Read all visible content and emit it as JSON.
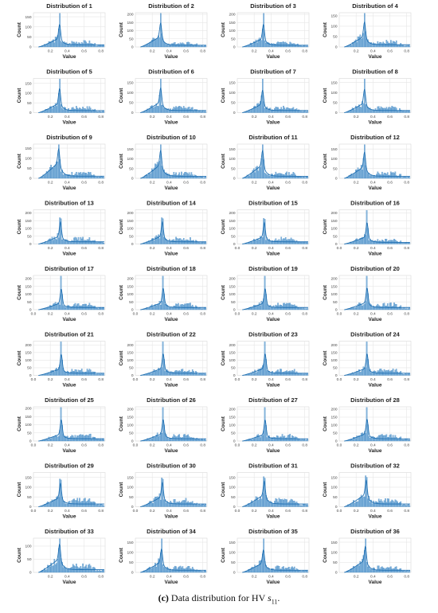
{
  "chart_data": {
    "type": "histogram-kde-grid",
    "panel_title_prefix": "Distribution of",
    "panel_titles": [
      "1",
      "2",
      "3",
      "4",
      "5",
      "6",
      "7",
      "8",
      "9",
      "10",
      "11",
      "12",
      "13",
      "14",
      "15",
      "16",
      "17",
      "18",
      "19",
      "20",
      "21",
      "22",
      "23",
      "24",
      "25",
      "26",
      "27",
      "28",
      "29",
      "30",
      "31",
      "32",
      "33",
      "34",
      "35",
      "36"
    ],
    "xlabel": "Value",
    "ylabel": "Count",
    "xlim": [
      0.0,
      0.85
    ],
    "xticks_centered": [
      "0.2",
      "0.4",
      "0.6",
      "0.8"
    ],
    "xticks_full": [
      "0.0",
      "0.2",
      "0.4",
      "0.6",
      "0.8"
    ],
    "bar_color": "#6fa8d6",
    "edge_color": "#3a82c0",
    "kde_color": "#1f6fb2",
    "grid": true,
    "panels": [
      {
        "yticks": [
          0,
          50,
          100,
          150
        ],
        "ymax": 170,
        "peak_x": 0.31,
        "peak_y": 150,
        "shoulder": 50,
        "tail": 15,
        "xaxis": "centered"
      },
      {
        "yticks": [
          0,
          50,
          100,
          150,
          200
        ],
        "ymax": 210,
        "peak_x": 0.3,
        "peak_y": 180,
        "shoulder": 75,
        "tail": 15,
        "xaxis": "centered"
      },
      {
        "yticks": [
          0,
          50,
          100,
          150,
          200
        ],
        "ymax": 210,
        "peak_x": 0.31,
        "peak_y": 190,
        "shoulder": 60,
        "tail": 15,
        "xaxis": "centered"
      },
      {
        "yticks": [
          0,
          50,
          100,
          150
        ],
        "ymax": 165,
        "peak_x": 0.3,
        "peak_y": 150,
        "shoulder": 60,
        "tail": 15,
        "xaxis": "centered"
      },
      {
        "yticks": [
          0,
          50,
          100,
          150
        ],
        "ymax": 175,
        "peak_x": 0.31,
        "peak_y": 165,
        "shoulder": 55,
        "tail": 15,
        "xaxis": "centered"
      },
      {
        "yticks": [
          0,
          50,
          100,
          150
        ],
        "ymax": 170,
        "peak_x": 0.3,
        "peak_y": 155,
        "shoulder": 60,
        "tail": 15,
        "xaxis": "centered"
      },
      {
        "yticks": [
          0,
          50,
          100,
          150
        ],
        "ymax": 170,
        "peak_x": 0.3,
        "peak_y": 150,
        "shoulder": 50,
        "tail": 15,
        "xaxis": "centered"
      },
      {
        "yticks": [
          0,
          50,
          100,
          150
        ],
        "ymax": 170,
        "peak_x": 0.3,
        "peak_y": 150,
        "shoulder": 55,
        "tail": 15,
        "xaxis": "centered"
      },
      {
        "yticks": [
          0,
          50,
          100,
          150
        ],
        "ymax": 170,
        "peak_x": 0.3,
        "peak_y": 150,
        "shoulder": 90,
        "tail": 15,
        "xaxis": "centered"
      },
      {
        "yticks": [
          0,
          50,
          100,
          150
        ],
        "ymax": 175,
        "peak_x": 0.3,
        "peak_y": 160,
        "shoulder": 80,
        "tail": 15,
        "xaxis": "centered"
      },
      {
        "yticks": [
          0,
          50,
          100,
          150
        ],
        "ymax": 175,
        "peak_x": 0.3,
        "peak_y": 160,
        "shoulder": 80,
        "tail": 15,
        "xaxis": "centered"
      },
      {
        "yticks": [
          0,
          50,
          100,
          150
        ],
        "ymax": 175,
        "peak_x": 0.3,
        "peak_y": 160,
        "shoulder": 70,
        "tail": 15,
        "xaxis": "centered"
      },
      {
        "yticks": [
          0,
          50,
          100,
          150,
          200
        ],
        "ymax": 220,
        "peak_x": 0.32,
        "peak_y": 200,
        "shoulder": 60,
        "tail": 20,
        "xaxis": "centered"
      },
      {
        "yticks": [
          0,
          50,
          100,
          150,
          200
        ],
        "ymax": 220,
        "peak_x": 0.32,
        "peak_y": 200,
        "shoulder": 60,
        "tail": 20,
        "xaxis": "centered"
      },
      {
        "yticks": [
          0,
          50,
          100,
          150,
          200
        ],
        "ymax": 220,
        "peak_x": 0.32,
        "peak_y": 200,
        "shoulder": 55,
        "tail": 20,
        "xaxis": "full"
      },
      {
        "yticks": [
          0,
          50,
          100,
          150,
          200
        ],
        "ymax": 220,
        "peak_x": 0.33,
        "peak_y": 200,
        "shoulder": 55,
        "tail": 15,
        "xaxis": "full"
      },
      {
        "yticks": [
          0,
          50,
          100,
          150,
          200
        ],
        "ymax": 220,
        "peak_x": 0.33,
        "peak_y": 200,
        "shoulder": 50,
        "tail": 20,
        "xaxis": "full"
      },
      {
        "yticks": [
          0,
          50,
          100,
          150,
          200
        ],
        "ymax": 220,
        "peak_x": 0.33,
        "peak_y": 200,
        "shoulder": 55,
        "tail": 20,
        "xaxis": "full"
      },
      {
        "yticks": [
          0,
          50,
          100,
          150,
          200
        ],
        "ymax": 220,
        "peak_x": 0.33,
        "peak_y": 205,
        "shoulder": 50,
        "tail": 20,
        "xaxis": "full"
      },
      {
        "yticks": [
          0,
          50,
          100,
          150,
          200
        ],
        "ymax": 220,
        "peak_x": 0.33,
        "peak_y": 205,
        "shoulder": 55,
        "tail": 20,
        "xaxis": "full"
      },
      {
        "yticks": [
          0,
          50,
          100,
          150,
          200
        ],
        "ymax": 225,
        "peak_x": 0.33,
        "peak_y": 210,
        "shoulder": 50,
        "tail": 20,
        "xaxis": "full"
      },
      {
        "yticks": [
          0,
          50,
          100,
          150,
          200
        ],
        "ymax": 225,
        "peak_x": 0.33,
        "peak_y": 210,
        "shoulder": 55,
        "tail": 20,
        "xaxis": "full"
      },
      {
        "yticks": [
          0,
          50,
          100,
          150,
          200
        ],
        "ymax": 225,
        "peak_x": 0.33,
        "peak_y": 210,
        "shoulder": 55,
        "tail": 20,
        "xaxis": "full"
      },
      {
        "yticks": [
          0,
          50,
          100,
          150,
          200
        ],
        "ymax": 225,
        "peak_x": 0.33,
        "peak_y": 210,
        "shoulder": 55,
        "tail": 20,
        "xaxis": "full"
      },
      {
        "yticks": [
          0,
          50,
          100,
          150,
          200
        ],
        "ymax": 210,
        "peak_x": 0.33,
        "peak_y": 195,
        "shoulder": 50,
        "tail": 20,
        "xaxis": "full"
      },
      {
        "yticks": [
          0,
          50,
          100,
          150,
          200
        ],
        "ymax": 215,
        "peak_x": 0.33,
        "peak_y": 195,
        "shoulder": 55,
        "tail": 20,
        "xaxis": "full"
      },
      {
        "yticks": [
          0,
          50,
          100,
          150,
          200
        ],
        "ymax": 215,
        "peak_x": 0.33,
        "peak_y": 200,
        "shoulder": 50,
        "tail": 20,
        "xaxis": "full"
      },
      {
        "yticks": [
          0,
          50,
          100,
          150,
          200
        ],
        "ymax": 215,
        "peak_x": 0.33,
        "peak_y": 200,
        "shoulder": 55,
        "tail": 20,
        "xaxis": "full"
      },
      {
        "yticks": [
          0,
          50,
          100,
          150
        ],
        "ymax": 175,
        "peak_x": 0.32,
        "peak_y": 160,
        "shoulder": 55,
        "tail": 20,
        "xaxis": "full"
      },
      {
        "yticks": [
          0,
          50,
          100,
          150
        ],
        "ymax": 175,
        "peak_x": 0.32,
        "peak_y": 160,
        "shoulder": 60,
        "tail": 20,
        "xaxis": "full"
      },
      {
        "yticks": [
          0,
          50,
          100,
          150
        ],
        "ymax": 175,
        "peak_x": 0.32,
        "peak_y": 155,
        "shoulder": 70,
        "tail": 20,
        "xaxis": "full"
      },
      {
        "yticks": [
          0,
          50,
          100,
          150
        ],
        "ymax": 175,
        "peak_x": 0.32,
        "peak_y": 155,
        "shoulder": 75,
        "tail": 20,
        "xaxis": "full"
      },
      {
        "yticks": [
          0,
          50,
          100
        ],
        "ymax": 130,
        "peak_x": 0.31,
        "peak_y": 120,
        "shoulder": 60,
        "tail": 15,
        "xaxis": "centered"
      },
      {
        "yticks": [
          0,
          50,
          100,
          150
        ],
        "ymax": 170,
        "peak_x": 0.31,
        "peak_y": 140,
        "shoulder": 60,
        "tail": 15,
        "xaxis": "centered"
      },
      {
        "yticks": [
          0,
          50,
          100,
          150
        ],
        "ymax": 170,
        "peak_x": 0.31,
        "peak_y": 140,
        "shoulder": 55,
        "tail": 15,
        "xaxis": "centered"
      },
      {
        "yticks": [
          0,
          50,
          100,
          150
        ],
        "ymax": 170,
        "peak_x": 0.31,
        "peak_y": 150,
        "shoulder": 70,
        "tail": 15,
        "xaxis": "centered"
      }
    ]
  },
  "caption": {
    "label": "(c)",
    "text": "Data distribution for HV",
    "math_var": "s",
    "math_sub": "11",
    "end": "."
  }
}
